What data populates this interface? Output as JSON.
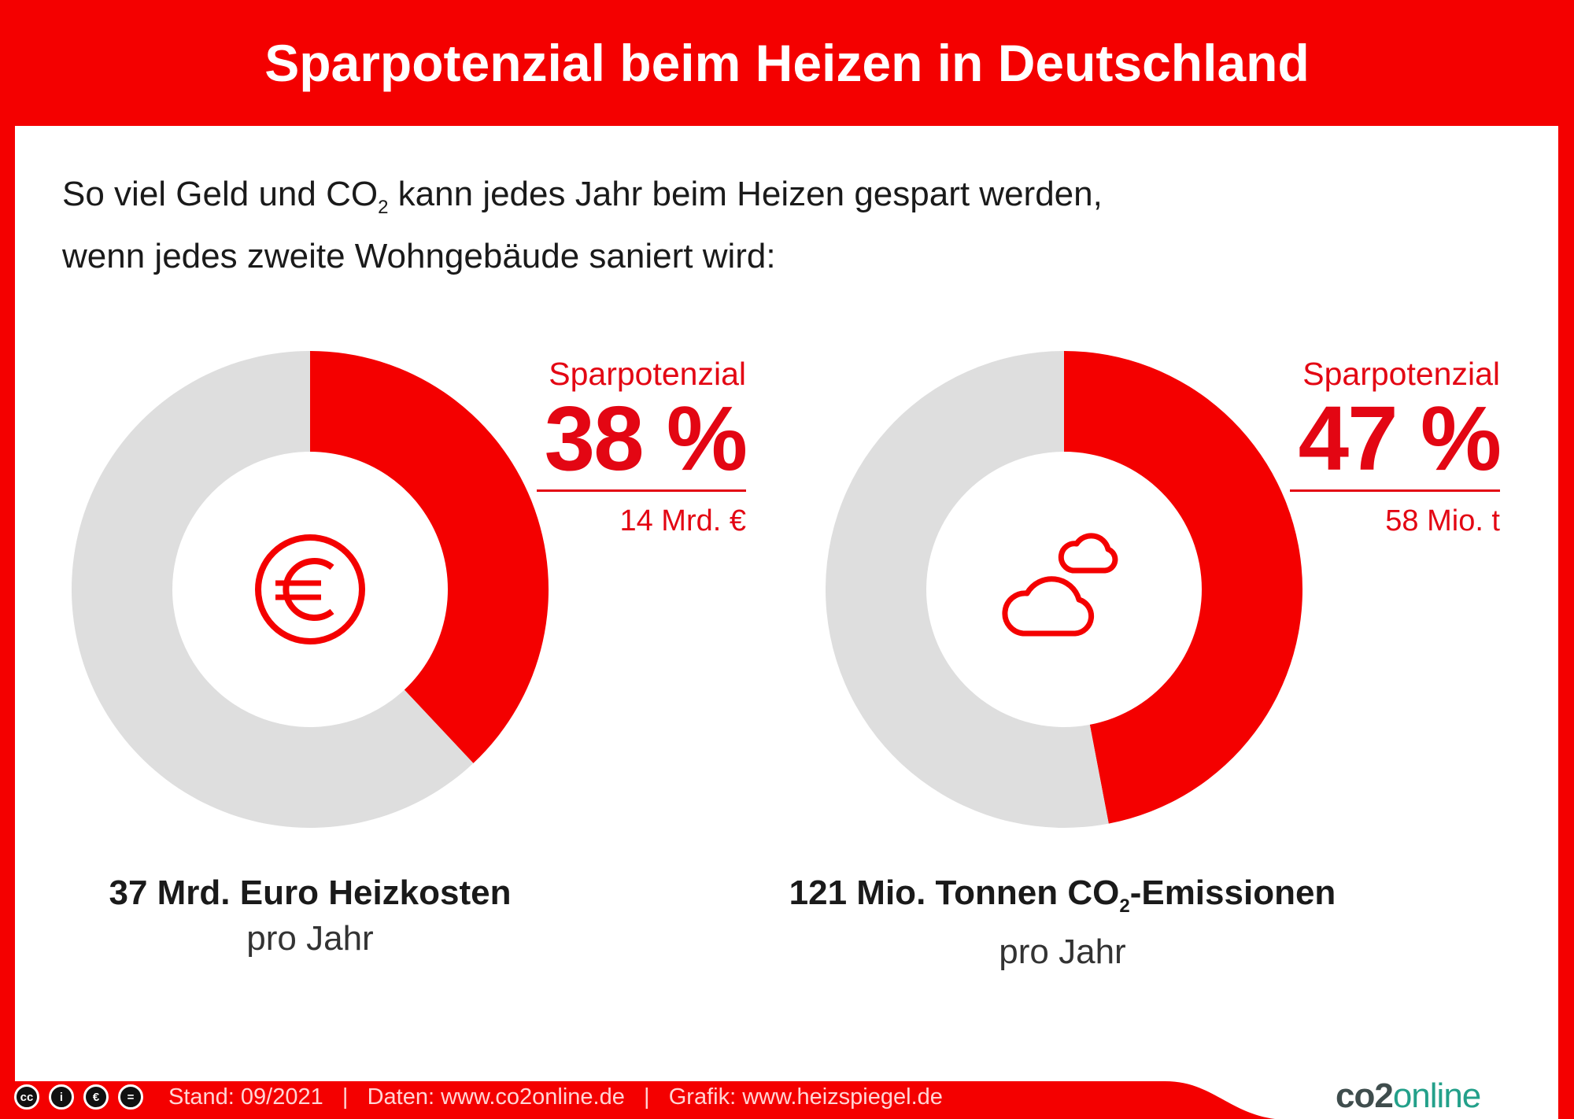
{
  "header": {
    "title": "Sparpotenzial beim Heizen in Deutschland"
  },
  "subtitle": {
    "line1_a": "So viel Geld und CO",
    "line1_sub": "2",
    "line1_b": " kann jedes Jahr beim Heizen gespart werden,",
    "line2": "wenn jedes zweite Wohngebäude saniert wird:"
  },
  "colors": {
    "accent": "#f40000",
    "remainder": "#dedede"
  },
  "chart_data": [
    {
      "type": "pie",
      "variant": "donut",
      "values": [
        38,
        62
      ],
      "highlight": 38,
      "icon": "euro-icon",
      "label": "Sparpotenzial",
      "value_label": "38 %",
      "absolute": "14 Mrd. €",
      "caption": "37 Mrd. Euro Heizkosten",
      "caption_sub": "pro Jahr"
    },
    {
      "type": "pie",
      "variant": "donut",
      "values": [
        47,
        53
      ],
      "highlight": 47,
      "icon": "clouds-icon",
      "label": "Sparpotenzial",
      "value_label": "47 %",
      "absolute": "58 Mio. t",
      "caption_a": "121 Mio. Tonnen CO",
      "caption_sub_index": "2",
      "caption_b": "-Emissionen",
      "caption_sub": "pro Jahr"
    }
  ],
  "footer": {
    "license_icons": [
      "cc-icon",
      "by-icon",
      "nc-icon",
      "nd-icon"
    ],
    "license_text": [
      "cc",
      "i",
      "€",
      "="
    ],
    "text": "Stand: 09/2021   |   Daten: www.co2online.de   |   Grafik: www.heizspiegel.de",
    "logo_a": "co2",
    "logo_b": "online"
  }
}
